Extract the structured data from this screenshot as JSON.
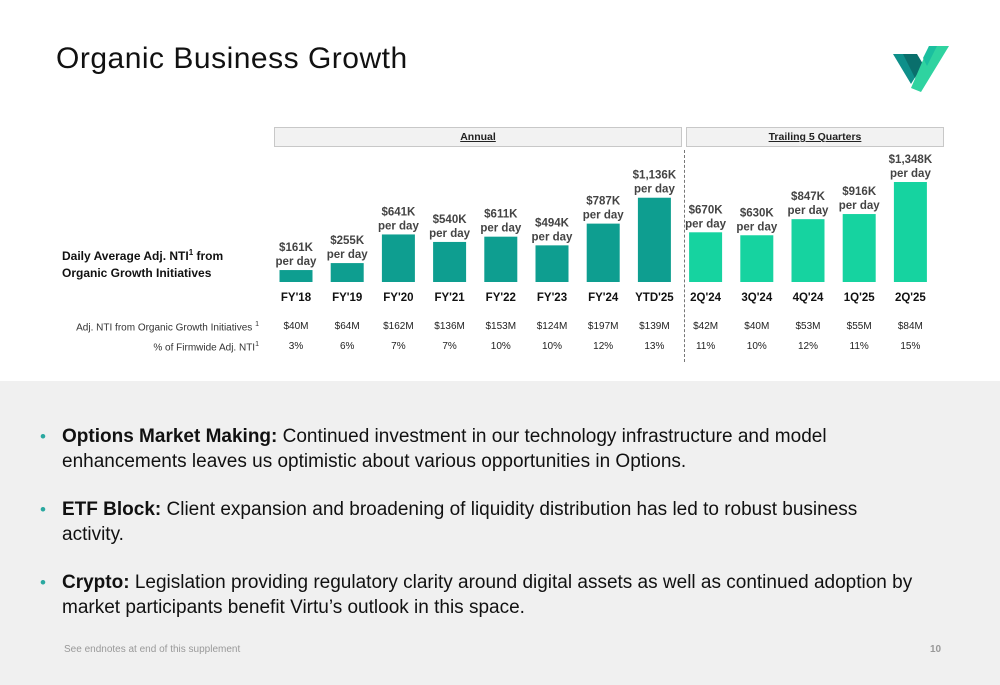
{
  "title": "Organic Business Growth",
  "logo": {
    "icon": "virtu-check-logo-icon",
    "colors": [
      "#0e8f8a",
      "#1bbf9f",
      "#2fd3a0"
    ]
  },
  "sections": {
    "annual": "Annual",
    "trailing": "Trailing 5 Quarters"
  },
  "y_axis_label": {
    "text": "Daily Average Adj. NTI",
    "sup": "1",
    "rest": " from Organic Growth Initiatives"
  },
  "chart_data": {
    "type": "bar",
    "categories": [
      "FY'18",
      "FY'19",
      "FY'20",
      "FY'21",
      "FY'22",
      "FY'23",
      "FY'24",
      "YTD'25",
      "2Q'24",
      "3Q'24",
      "4Q'24",
      "1Q'25",
      "2Q'25"
    ],
    "values": [
      161,
      255,
      641,
      540,
      611,
      494,
      787,
      1136,
      670,
      630,
      847,
      916,
      1348
    ],
    "value_labels": [
      "$161K",
      "$255K",
      "$641K",
      "$540K",
      "$611K",
      "$494K",
      "$787K",
      "$1,136K",
      "$670K",
      "$630K",
      "$847K",
      "$916K",
      "$1,348K"
    ],
    "label_suffix": "per day",
    "groups": [
      "annual",
      "annual",
      "annual",
      "annual",
      "annual",
      "annual",
      "annual",
      "annual",
      "trailing",
      "trailing",
      "trailing",
      "trailing",
      "trailing"
    ],
    "colors": {
      "annual": "#0e9e90",
      "trailing": "#16d3a0"
    },
    "ylim": [
      0,
      1400
    ]
  },
  "table": {
    "row1_label": "Adj. NTI from Organic Growth Initiatives",
    "row1_sup": "1",
    "row1": [
      "$40M",
      "$64M",
      "$162M",
      "$136M",
      "$153M",
      "$124M",
      "$197M",
      "$139M",
      "$42M",
      "$40M",
      "$53M",
      "$55M",
      "$84M"
    ],
    "row2_label": "% of Firmwide Adj. NTI",
    "row2_sup": "1",
    "row2": [
      "3%",
      "6%",
      "7%",
      "7%",
      "10%",
      "10%",
      "12%",
      "13%",
      "11%",
      "10%",
      "12%",
      "11%",
      "15%"
    ]
  },
  "bullets": [
    {
      "bold": "Options Market Making:",
      "text": " Continued investment in our technology infrastructure and model enhancements leaves us optimistic about various opportunities in Options."
    },
    {
      "bold": "ETF Block:",
      "text": " Client expansion and broadening of liquidity distribution has led to robust business activity."
    },
    {
      "bold": "Crypto:",
      "text": " Legislation providing regulatory clarity around digital assets as well as continued adoption by market participants benefit Virtu’s outlook in this space."
    }
  ],
  "footnote": "See endnotes at end of this supplement",
  "page_number": "10"
}
